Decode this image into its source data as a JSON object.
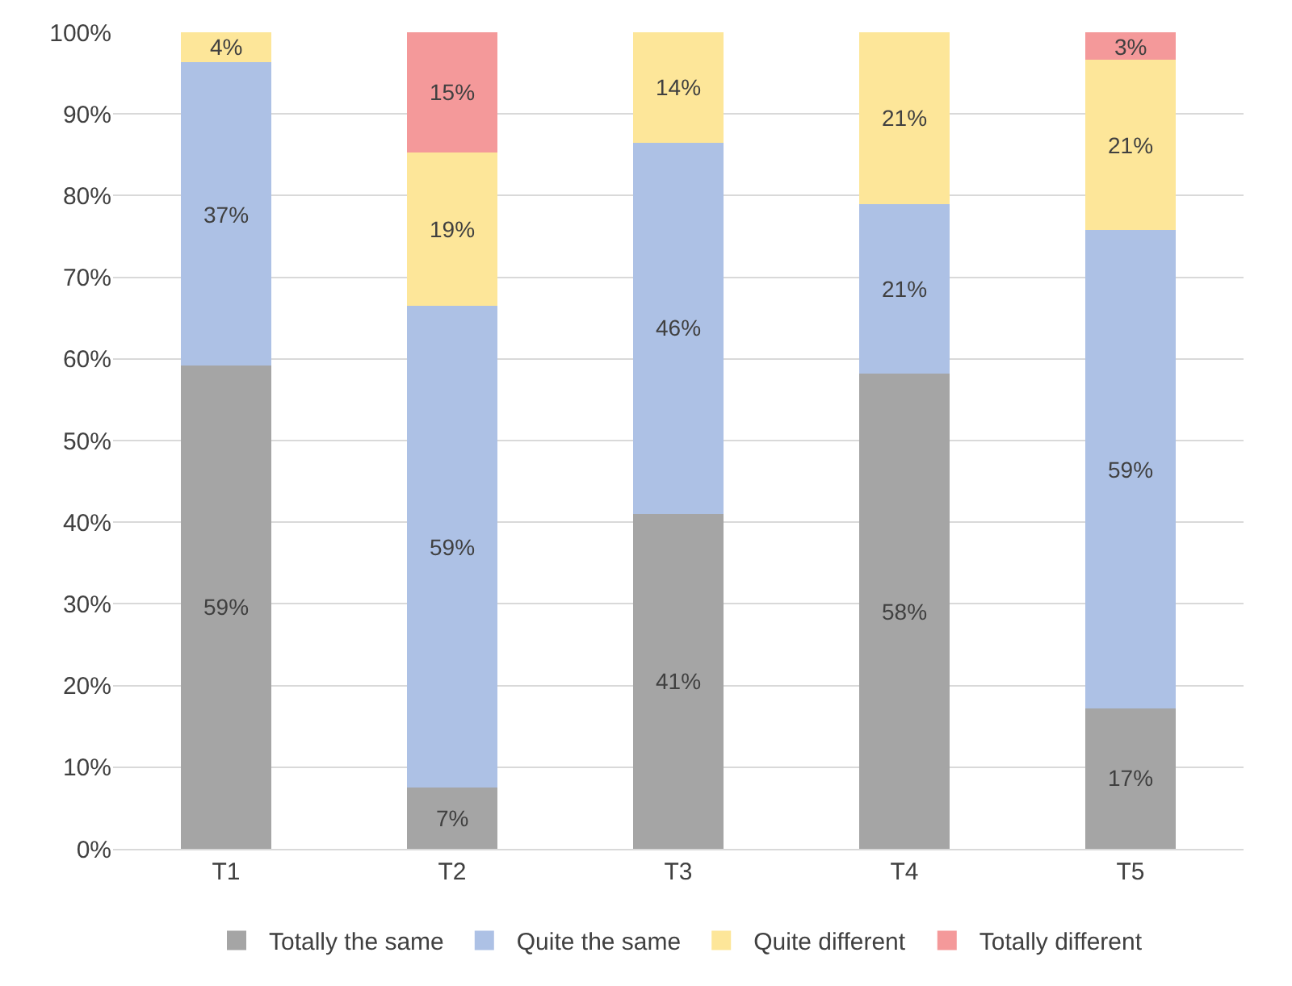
{
  "chart_data": {
    "type": "bar",
    "stacked": true,
    "categories": [
      "T1",
      "T2",
      "T3",
      "T4",
      "T5"
    ],
    "series": [
      {
        "name": "Totally the same",
        "color": "#a5a5a5",
        "values": [
          59.2,
          7.5,
          41,
          58.2,
          17.2
        ],
        "value_labels": [
          "59%",
          "7%",
          "41%",
          "58%",
          "17%"
        ]
      },
      {
        "name": "Quite the same",
        "color": "#adc1e5",
        "values": [
          37.1,
          59,
          45.5,
          20.8,
          58.6
        ],
        "value_labels": [
          "37%",
          "59%",
          "46%",
          "21%",
          "59%"
        ]
      },
      {
        "name": "Quite different",
        "color": "#fde699",
        "values": [
          3.7,
          18.8,
          13.5,
          21,
          20.8
        ],
        "value_labels": [
          "4%",
          "19%",
          "14%",
          "21%",
          "21%"
        ]
      },
      {
        "name": "Totally different",
        "color": "#f4999a",
        "values": [
          null,
          14.7,
          null,
          null,
          3.4
        ],
        "value_labels": [
          null,
          "15%",
          null,
          null,
          "3%"
        ]
      }
    ],
    "ylim": [
      0,
      100
    ],
    "yticks": [
      {
        "value": 0,
        "label": "0%"
      },
      {
        "value": 10,
        "label": "10%"
      },
      {
        "value": 20,
        "label": "20%"
      },
      {
        "value": 30,
        "label": "30%"
      },
      {
        "value": 40,
        "label": "40%"
      },
      {
        "value": 50,
        "label": "50%"
      },
      {
        "value": 60,
        "label": "60%"
      },
      {
        "value": 70,
        "label": "70%"
      },
      {
        "value": 80,
        "label": "80%"
      },
      {
        "value": 90,
        "label": "90%"
      },
      {
        "value": 100,
        "label": "100%"
      }
    ],
    "grid": "y",
    "legend": "bottom"
  }
}
